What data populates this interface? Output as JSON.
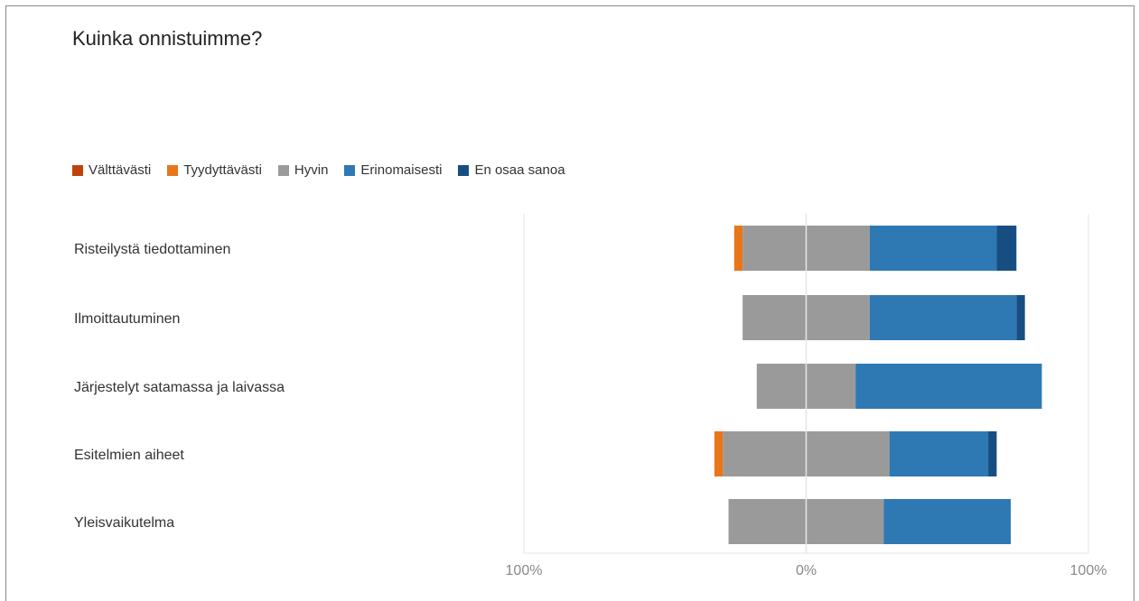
{
  "chart_data": {
    "type": "bar",
    "subtype": "diverging-stacked-horizontal",
    "title": "Kuinka onnistuimme?",
    "categories": [
      "Risteilystä tiedottaminen",
      "Ilmoittautuminen",
      "Järjestelyt satamassa ja laivassa",
      "Esitelmien aiheet",
      "Yleisvaikutelma"
    ],
    "series": [
      {
        "name": "Välttävästi",
        "color": "#c0420a",
        "values": [
          0,
          0,
          0,
          0,
          0
        ],
        "direction": "negative"
      },
      {
        "name": "Tyydyttävästi",
        "color": "#e8761a",
        "values": [
          3,
          0,
          0,
          3,
          0
        ],
        "direction": "negative"
      },
      {
        "name": "Hyvin",
        "color": "#9a9a9a",
        "values": [
          45,
          45,
          35,
          59,
          55
        ],
        "direction": "split"
      },
      {
        "name": "Erinomaisesti",
        "color": "#2e79b3",
        "values": [
          45,
          52,
          66,
          35,
          45
        ],
        "direction": "positive"
      },
      {
        "name": "En osaa sanoa",
        "color": "#174e82",
        "values": [
          7,
          3,
          0,
          3,
          0
        ],
        "direction": "positive"
      }
    ],
    "x_ticks": [
      "100%",
      "0%",
      "100%"
    ],
    "xlim": [
      -100,
      100
    ],
    "legend_position": "top-left",
    "grid": true
  }
}
